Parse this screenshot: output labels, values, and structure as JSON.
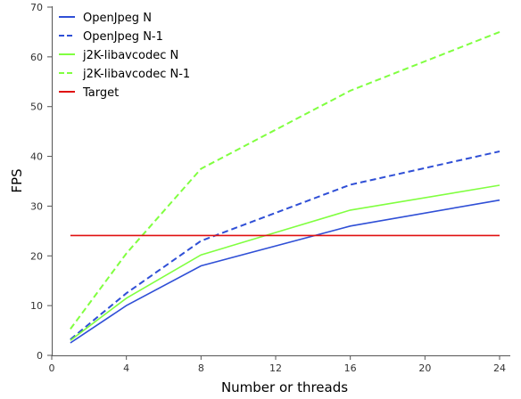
{
  "chart_data": {
    "type": "line",
    "title": "",
    "xlabel": "Number or threads",
    "ylabel": "FPS",
    "xlim": [
      0,
      24
    ],
    "ylim": [
      0,
      70
    ],
    "xticks": [
      0,
      4,
      8,
      12,
      16,
      20,
      24
    ],
    "yticks": [
      0,
      10,
      20,
      30,
      40,
      50,
      60,
      70
    ],
    "grid": false,
    "legend_position": "top-left",
    "series": [
      {
        "name": "OpenJpeg N",
        "color": "#2f4fd6",
        "dash": "solid",
        "points": [
          [
            1,
            2.5
          ],
          [
            4,
            10
          ],
          [
            8,
            18
          ],
          [
            16,
            26
          ],
          [
            24,
            31.2
          ]
        ]
      },
      {
        "name": "OpenJpeg N-1",
        "color": "#2f4fd6",
        "dash": "dashed",
        "points": [
          [
            1,
            3.2
          ],
          [
            4,
            12.5
          ],
          [
            8,
            23
          ],
          [
            16,
            34.3
          ],
          [
            24,
            41
          ]
        ]
      },
      {
        "name": "j2K-libavcodec N",
        "color": "#80ff40",
        "dash": "solid",
        "points": [
          [
            1,
            3
          ],
          [
            4,
            11.5
          ],
          [
            8,
            20.2
          ],
          [
            16,
            29.2
          ],
          [
            24,
            34.2
          ]
        ]
      },
      {
        "name": "j2K-libavcodec N-1",
        "color": "#80ff40",
        "dash": "dashed",
        "points": [
          [
            1,
            5.3
          ],
          [
            4,
            20.5
          ],
          [
            8,
            37.5
          ],
          [
            16,
            53.2
          ],
          [
            24,
            65
          ]
        ]
      },
      {
        "name": "Target",
        "color": "#e01010",
        "dash": "solid",
        "points": [
          [
            1,
            24.1
          ],
          [
            24,
            24.1
          ]
        ]
      }
    ]
  }
}
